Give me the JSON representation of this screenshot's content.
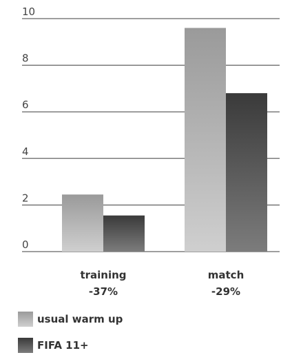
{
  "chart_data": {
    "type": "bar",
    "categories": [
      "training",
      "match"
    ],
    "category_sublabels": [
      "-37%",
      "-29%"
    ],
    "series": [
      {
        "name": "usual warm up",
        "values": [
          2.45,
          9.6
        ],
        "color": "#b0b0b0"
      },
      {
        "name": "FIFA 11+",
        "values": [
          1.55,
          6.8
        ],
        "color": "#5c5c5c"
      }
    ],
    "ylim": [
      0,
      10
    ],
    "yticks": [
      0,
      2,
      4,
      6,
      8,
      10
    ],
    "grid": true,
    "legend_position": "bottom-left"
  }
}
